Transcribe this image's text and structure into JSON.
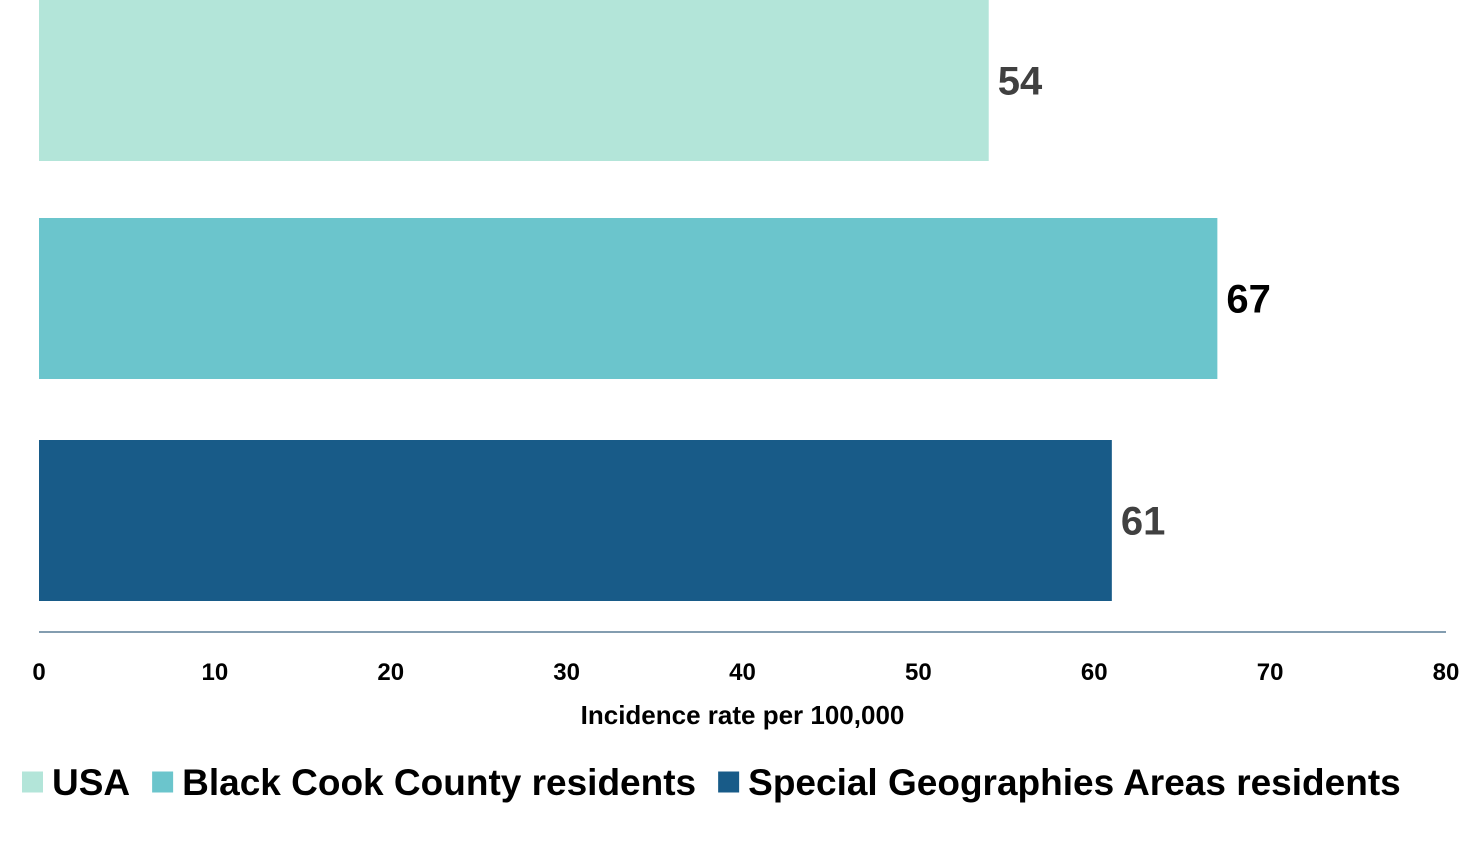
{
  "chart_data": {
    "type": "bar",
    "orientation": "horizontal",
    "categories": [
      "USA",
      "Black Cook County residents",
      "Special Geographies Areas residents"
    ],
    "values": [
      54,
      67,
      61
    ],
    "value_labels": [
      "54",
      "67",
      "61"
    ],
    "colors": [
      "#b3e5d9",
      "#6bc5cc",
      "#185b88"
    ],
    "label_colors": [
      "#404040",
      "#000000",
      "#404040"
    ],
    "xlabel": "Incidence rate per 100,000",
    "ylabel": "",
    "xlim": [
      0,
      80
    ],
    "xticks": [
      0,
      10,
      20,
      30,
      40,
      50,
      60,
      70,
      80
    ],
    "grid": false,
    "legend_position": "bottom",
    "axis_color": "#5a7d96"
  }
}
